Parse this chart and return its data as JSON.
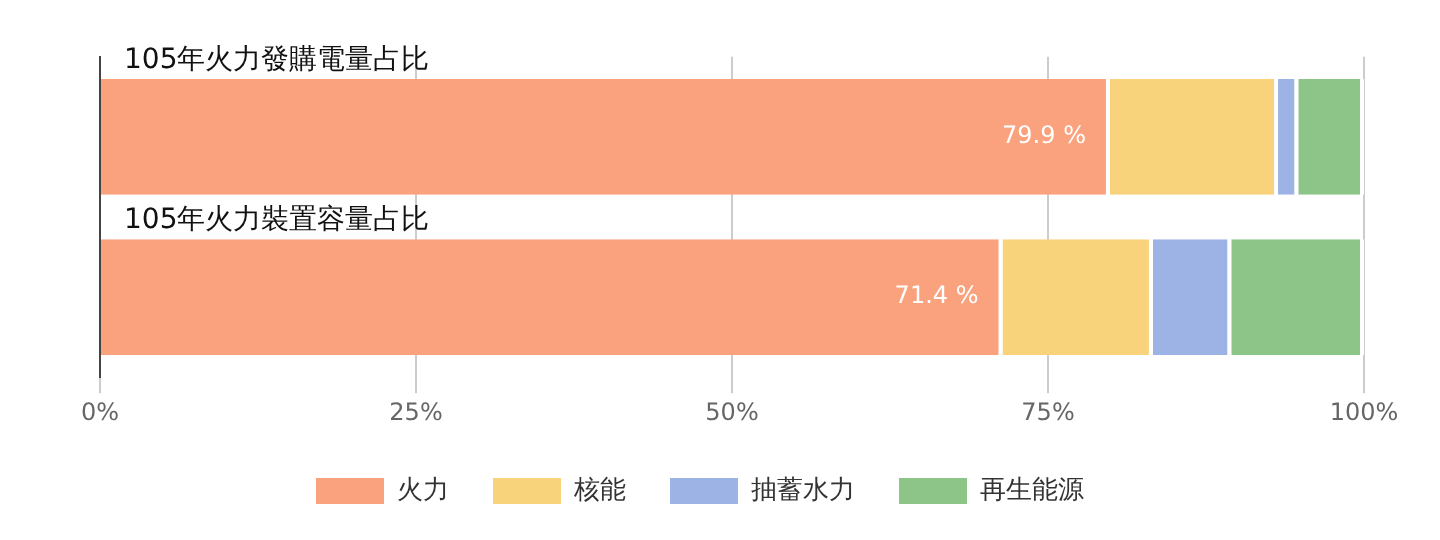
{
  "chart_data": {
    "type": "bar",
    "orientation": "horizontal",
    "stacked": true,
    "categories": [
      "105年火力發購電量占比",
      "105年火力裝置容量占比"
    ],
    "series": [
      {
        "name": "火力",
        "color": "#f9a27d",
        "values": [
          79.9,
          71.4
        ],
        "value_labels": [
          "79.9 %",
          "71.4 %"
        ]
      },
      {
        "name": "核能",
        "color": "#f9d27c",
        "values": [
          13.3,
          11.9
        ]
      },
      {
        "name": "抽蓄水力",
        "color": "#9db3e6",
        "values": [
          1.6,
          6.2
        ]
      },
      {
        "name": "再生能源",
        "color": "#8dc488",
        "values": [
          5.2,
          10.5
        ]
      }
    ],
    "xlim": [
      0,
      100
    ],
    "xticks": [
      {
        "value": 0,
        "label": "0%"
      },
      {
        "value": 25,
        "label": "25%"
      },
      {
        "value": 50,
        "label": "50%"
      },
      {
        "value": 75,
        "label": "75%"
      },
      {
        "value": 100,
        "label": "100%"
      }
    ],
    "grid": "x",
    "legend": "bottom"
  }
}
